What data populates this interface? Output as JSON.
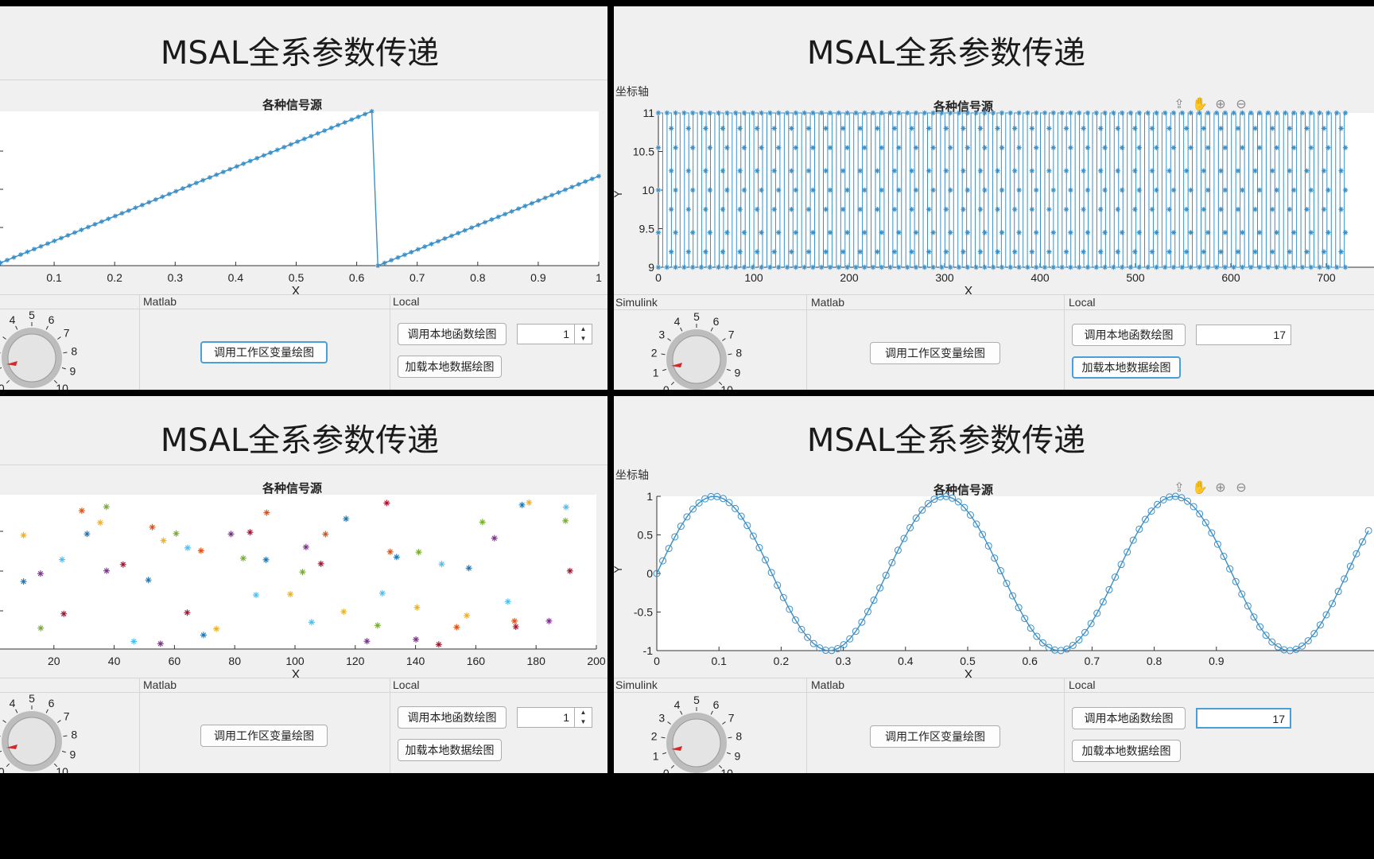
{
  "app_title": "MSAL全系参数传递",
  "axes_group_label": "坐标轴",
  "plot_title": "各种信号源",
  "x_axis_label": "X",
  "y_axis_label": "Y",
  "panels": {
    "simulink": "Simulink",
    "matlab": "Matlab",
    "local": "Local"
  },
  "buttons": {
    "workspace_plot": "调用工作区变量绘图",
    "local_func_plot": "调用本地函数绘图",
    "local_data_plot": "加载本地数据绘图"
  },
  "knob_ticks": [
    "0",
    "1",
    "2",
    "3",
    "4",
    "5",
    "6",
    "7",
    "8",
    "9",
    "10"
  ],
  "quadrants": [
    {
      "id": "top-left",
      "spinner_value": "1",
      "chart_ticks_x": [
        "0.1",
        "0.2",
        "0.3",
        "0.4",
        "0.5",
        "0.6",
        "0.7",
        "0.8",
        "0.9",
        "1"
      ]
    },
    {
      "id": "top-right",
      "field_value": "17",
      "chart_ticks_x": [
        "0",
        "100",
        "200",
        "300",
        "400",
        "500",
        "600",
        "700"
      ],
      "chart_ticks_y": [
        "9",
        "9.5",
        "10",
        "10.5",
        "11"
      ]
    },
    {
      "id": "bottom-left",
      "spinner_value": "1",
      "chart_ticks_x": [
        "20",
        "40",
        "60",
        "80",
        "100",
        "120",
        "140",
        "160",
        "180",
        "200"
      ]
    },
    {
      "id": "bottom-right",
      "field_value": "17",
      "chart_ticks_x": [
        "0",
        "0.1",
        "0.2",
        "0.3",
        "0.4",
        "0.5",
        "0.6",
        "0.7",
        "0.8",
        "0.9"
      ],
      "chart_ticks_y": [
        "-1",
        "-0.5",
        "0",
        "0.5",
        "1"
      ]
    }
  ],
  "chart_data": [
    {
      "type": "line",
      "title": "各种信号源",
      "xlabel": "X",
      "xlim": [
        0,
        1
      ],
      "series": [
        {
          "name": "",
          "marker": "pentagram",
          "segments": [
            {
              "x": [
                0,
                0.625
              ],
              "y": [
                0,
                1
              ]
            },
            {
              "x": [
                0.635,
                1
              ],
              "y": [
                0,
                0.58
              ]
            }
          ]
        }
      ],
      "color": "#3a8fc7"
    },
    {
      "type": "line",
      "title": "各种信号源",
      "xlabel": "X",
      "ylabel": "Y",
      "xlim": [
        0,
        750
      ],
      "ylim": [
        9,
        11
      ],
      "series": [
        {
          "name": "",
          "marker": "asterisk",
          "description_values": "square wave oscillating between 9 and 11 from x=0 to x=720"
        }
      ],
      "color": "#1f77b4"
    },
    {
      "type": "scatter",
      "title": "各种信号源",
      "xlabel": "X",
      "xlim": [
        0,
        200
      ],
      "marker": "asterisk",
      "points": "random multicolor asterisks"
    },
    {
      "type": "line",
      "title": "各种信号源",
      "xlabel": "X",
      "ylabel": "Y",
      "xlim": [
        0,
        1
      ],
      "ylim": [
        -1,
        1
      ],
      "series": [
        {
          "name": "",
          "marker": "circle",
          "function": "sin(2*pi*x/0.37)"
        }
      ],
      "color": "#3a8fc7"
    }
  ],
  "colors": {
    "line": "#3a8fc7",
    "accent": "#4a9fd8",
    "knob_red": "#d02a2a",
    "bg": "#f0f0f0"
  }
}
